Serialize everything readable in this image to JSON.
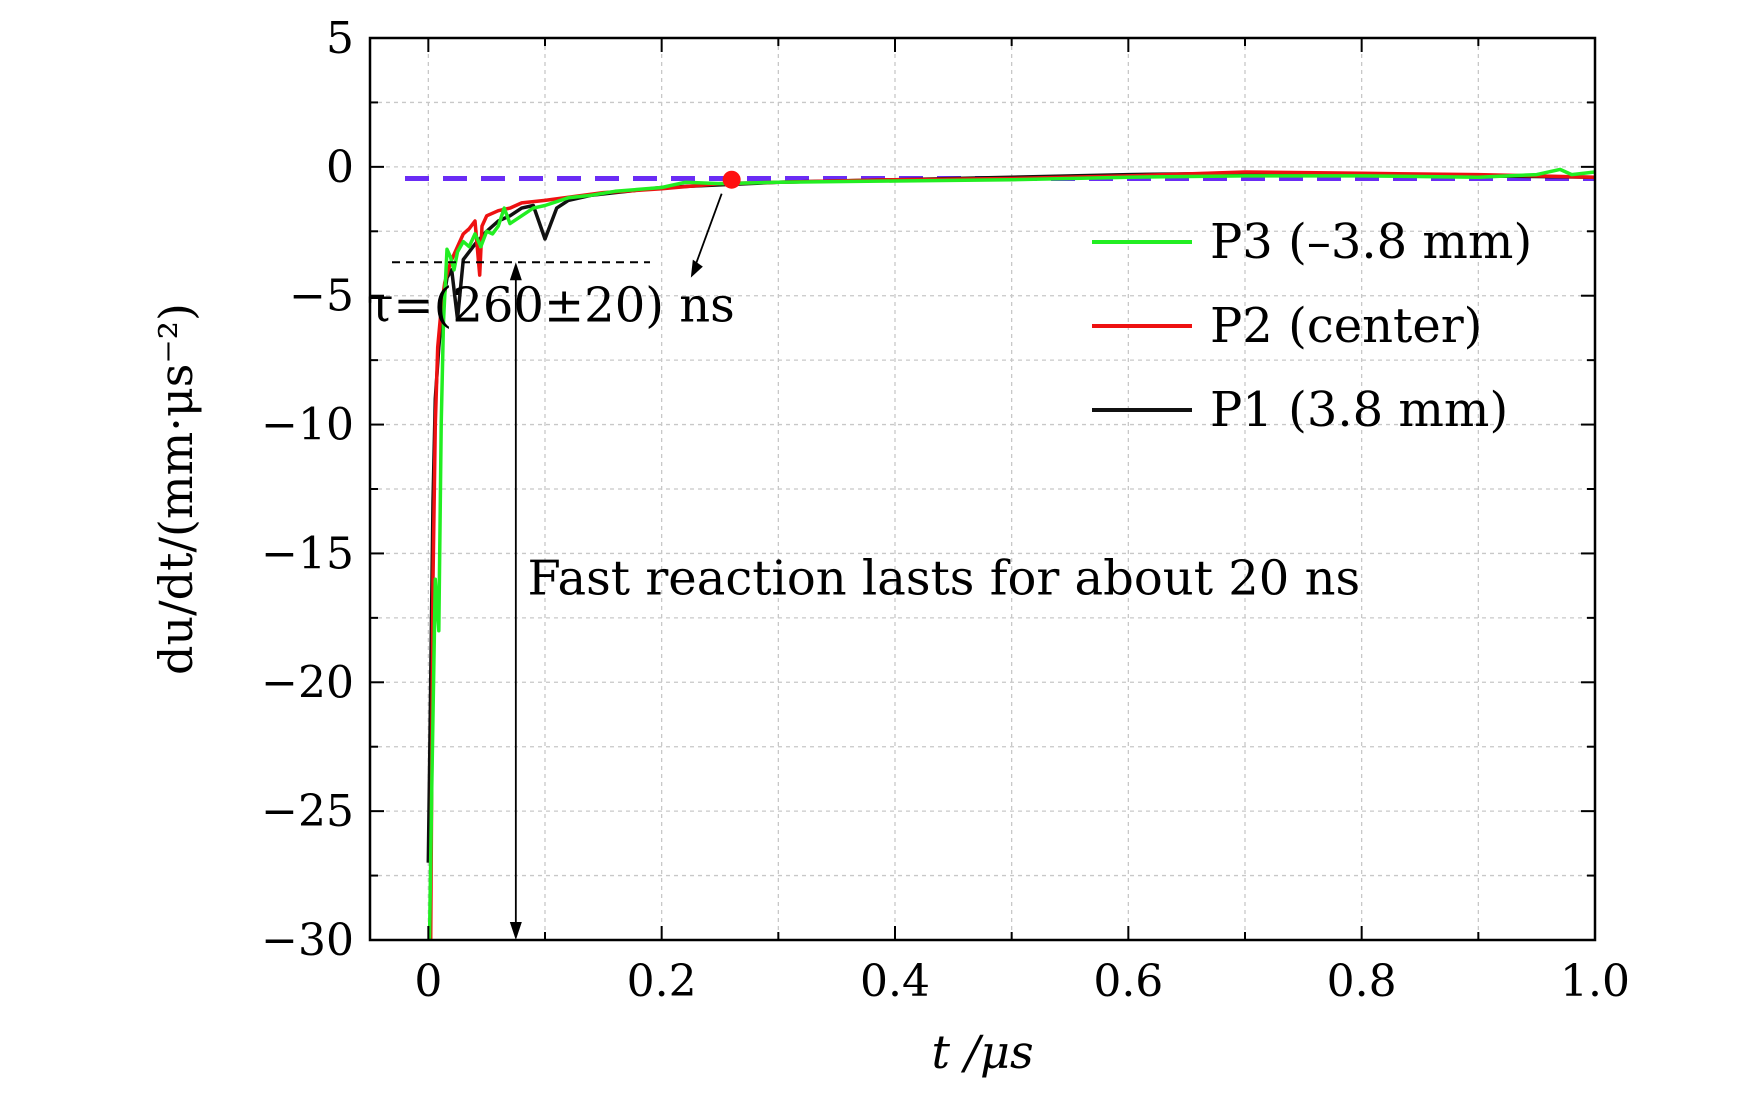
{
  "chart_data": {
    "type": "line",
    "xlabel": "t /μs",
    "ylabel": "du/dt/(mm·μs⁻²)",
    "xlim": [
      -0.05,
      1.0
    ],
    "ylim": [
      -30,
      5
    ],
    "x_ticks": [
      0,
      0.2,
      0.4,
      0.6,
      0.8,
      1.0
    ],
    "x_tick_labels": [
      "0",
      "0.2",
      "0.4",
      "0.6",
      "0.8",
      "1.0"
    ],
    "y_ticks": [
      5,
      0,
      -5,
      -10,
      -15,
      -20,
      -25,
      -30
    ],
    "y_tick_labels": [
      "5",
      "0",
      "−5",
      "−10",
      "−15",
      "−20",
      "−25",
      "−30"
    ],
    "grid": true,
    "legend_position": "top-right",
    "series": [
      {
        "name": "P3 (–3.8 mm)",
        "color": "#22ee22",
        "x": [
          0.001,
          0.003,
          0.006,
          0.009,
          0.011,
          0.013,
          0.016,
          0.019,
          0.022,
          0.025,
          0.03,
          0.035,
          0.04,
          0.045,
          0.05,
          0.055,
          0.06,
          0.065,
          0.07,
          0.08,
          0.09,
          0.1,
          0.12,
          0.14,
          0.16,
          0.2,
          0.22,
          0.25,
          0.3,
          0.4,
          0.5,
          0.6,
          0.7,
          0.8,
          0.9,
          0.95,
          0.97,
          0.98,
          1.0
        ],
        "y": [
          -30,
          -24,
          -16,
          -18,
          -10,
          -6,
          -3.2,
          -3.5,
          -4.0,
          -3.3,
          -2.9,
          -3.1,
          -2.6,
          -3.1,
          -2.5,
          -2.6,
          -2.3,
          -1.6,
          -2.2,
          -1.9,
          -1.6,
          -1.5,
          -1.2,
          -1.1,
          -0.95,
          -0.8,
          -0.6,
          -0.65,
          -0.6,
          -0.55,
          -0.5,
          -0.4,
          -0.35,
          -0.35,
          -0.4,
          -0.3,
          -0.1,
          -0.3,
          -0.2
        ]
      },
      {
        "name": "P2 (center)",
        "color": "#ee1111",
        "x": [
          0.002,
          0.004,
          0.006,
          0.008,
          0.011,
          0.014,
          0.017,
          0.02,
          0.025,
          0.03,
          0.035,
          0.04,
          0.044,
          0.046,
          0.05,
          0.06,
          0.07,
          0.08,
          0.1,
          0.15,
          0.2,
          0.25,
          0.3,
          0.4,
          0.5,
          0.6,
          0.7,
          0.8,
          0.9,
          1.0
        ],
        "y": [
          -30,
          -16,
          -10,
          -7,
          -5.5,
          -4.5,
          -4.0,
          -3.6,
          -3.1,
          -2.6,
          -2.4,
          -2.1,
          -4.2,
          -2.3,
          -1.9,
          -1.7,
          -1.6,
          -1.4,
          -1.3,
          -1.0,
          -0.85,
          -0.65,
          -0.6,
          -0.5,
          -0.45,
          -0.35,
          -0.2,
          -0.25,
          -0.3,
          -0.4
        ]
      },
      {
        "name": "P1 (3.8 mm)",
        "color": "#111111",
        "x": [
          0.0,
          0.002,
          0.004,
          0.006,
          0.009,
          0.012,
          0.016,
          0.02,
          0.025,
          0.03,
          0.04,
          0.05,
          0.06,
          0.07,
          0.08,
          0.09,
          0.1,
          0.11,
          0.12,
          0.14,
          0.16,
          0.2,
          0.25,
          0.3,
          0.4,
          0.5,
          0.6,
          0.7,
          0.8,
          0.9,
          1.0
        ],
        "y": [
          -27,
          -20,
          -13,
          -9,
          -7,
          -5.5,
          -4.3,
          -4.0,
          -5.9,
          -3.6,
          -3.0,
          -2.5,
          -2.1,
          -1.9,
          -1.6,
          -1.5,
          -2.8,
          -1.6,
          -1.3,
          -1.1,
          -1.0,
          -0.8,
          -0.7,
          -0.6,
          -0.5,
          -0.4,
          -0.3,
          -0.25,
          -0.3,
          -0.35,
          -0.4
        ]
      },
      {
        "name": "",
        "color": "#6a2cf5",
        "x": [
          -0.02,
          1.0
        ],
        "y": [
          -0.45,
          -0.45
        ]
      }
    ],
    "annotations": {
      "tau_text": "τ=(260±20) ns",
      "tau_point": {
        "x": 0.26,
        "y": -0.5
      },
      "fast_text": "Fast reaction lasts for about 20 ns"
    }
  }
}
